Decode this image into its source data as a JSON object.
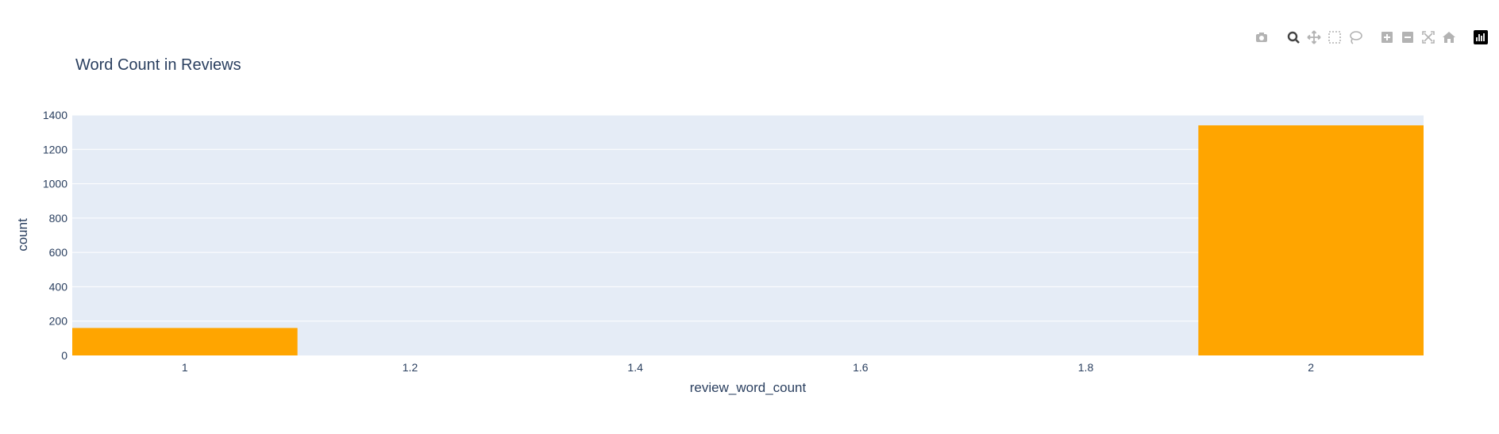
{
  "modebar": {
    "buttons": [
      {
        "name": "camera-icon",
        "group": 0
      },
      {
        "name": "zoom-icon",
        "group": 1,
        "active": true
      },
      {
        "name": "pan-icon",
        "group": 1
      },
      {
        "name": "box-select-icon",
        "group": 1
      },
      {
        "name": "lasso-select-icon",
        "group": 1
      },
      {
        "name": "zoom-in-icon",
        "group": 2
      },
      {
        "name": "zoom-out-icon",
        "group": 2
      },
      {
        "name": "autoscale-icon",
        "group": 2
      },
      {
        "name": "reset-axes-icon",
        "group": 2
      },
      {
        "name": "plotly-logo-icon",
        "group": 3
      }
    ]
  },
  "colors": {
    "bar": "#FFA500",
    "plot_bg": "#E5ECF6",
    "grid": "#FFFFFF",
    "text": "#2a3f5f",
    "icon": "#b3b3b3"
  },
  "chart_data": {
    "type": "bar",
    "title": "Word Count in Reviews",
    "xlabel": "review_word_count",
    "ylabel": "count",
    "x": [
      1,
      2
    ],
    "values": [
      160,
      1340
    ],
    "bar_width": 0.2,
    "xlim": [
      0.9,
      2.1
    ],
    "ylim": [
      0,
      1400
    ],
    "xticks": [
      1,
      1.2,
      1.4,
      1.6,
      1.8,
      2
    ],
    "yticks": [
      0,
      200,
      400,
      600,
      800,
      1000,
      1200,
      1400
    ],
    "grid": true,
    "legend": "none"
  }
}
